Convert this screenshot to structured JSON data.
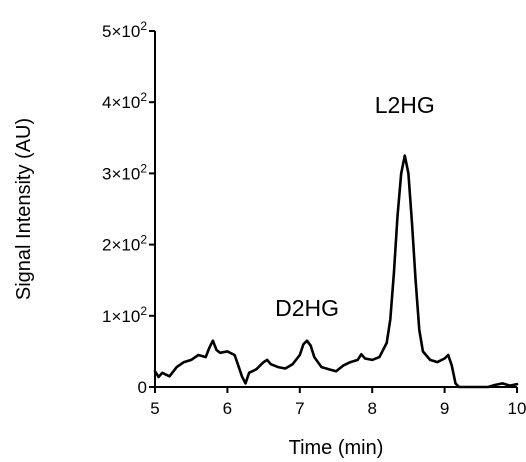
{
  "chart_data": {
    "type": "line",
    "title": "",
    "xlabel": "Time (min)",
    "ylabel": "Signal Intensity (AU)",
    "xlim": [
      5,
      10
    ],
    "ylim": [
      0,
      500
    ],
    "grid": false,
    "legend": "none",
    "x_ticks": [
      "5",
      "6",
      "7",
      "8",
      "9",
      "10"
    ],
    "y_ticks": [
      {
        "base": "0",
        "exp": ""
      },
      {
        "base": "1×10",
        "exp": "2"
      },
      {
        "base": "2×10",
        "exp": "2"
      },
      {
        "base": "3×10",
        "exp": "2"
      },
      {
        "base": "4×10",
        "exp": "2"
      },
      {
        "base": "5×10",
        "exp": "2"
      }
    ],
    "annotations": [
      {
        "text": "D2HG",
        "x": 7.1,
        "y": 100
      },
      {
        "text": "L2HG",
        "x": 8.45,
        "y": 385
      }
    ],
    "series": [
      {
        "color": "#000000",
        "x": [
          5.0,
          5.05,
          5.1,
          5.2,
          5.3,
          5.4,
          5.5,
          5.6,
          5.7,
          5.75,
          5.8,
          5.85,
          5.9,
          6.0,
          6.1,
          6.15,
          6.2,
          6.25,
          6.3,
          6.4,
          6.5,
          6.55,
          6.6,
          6.7,
          6.8,
          6.9,
          7.0,
          7.05,
          7.1,
          7.15,
          7.2,
          7.3,
          7.4,
          7.5,
          7.6,
          7.7,
          7.8,
          7.85,
          7.9,
          8.0,
          8.1,
          8.2,
          8.25,
          8.3,
          8.35,
          8.4,
          8.45,
          8.5,
          8.55,
          8.6,
          8.65,
          8.7,
          8.8,
          8.9,
          9.0,
          9.05,
          9.1,
          9.15,
          9.2,
          9.3,
          9.4,
          9.5,
          9.6,
          9.7,
          9.8,
          9.9,
          10.0
        ],
        "y": [
          22,
          14,
          20,
          15,
          28,
          35,
          38,
          45,
          42,
          55,
          65,
          52,
          48,
          50,
          45,
          30,
          15,
          5,
          20,
          25,
          35,
          38,
          32,
          28,
          26,
          32,
          45,
          60,
          65,
          58,
          42,
          28,
          25,
          22,
          30,
          35,
          38,
          46,
          40,
          38,
          42,
          62,
          95,
          160,
          240,
          300,
          325,
          300,
          230,
          150,
          80,
          50,
          38,
          35,
          40,
          45,
          30,
          5,
          0,
          0,
          0,
          0,
          0,
          3,
          5,
          2,
          4
        ]
      }
    ]
  }
}
